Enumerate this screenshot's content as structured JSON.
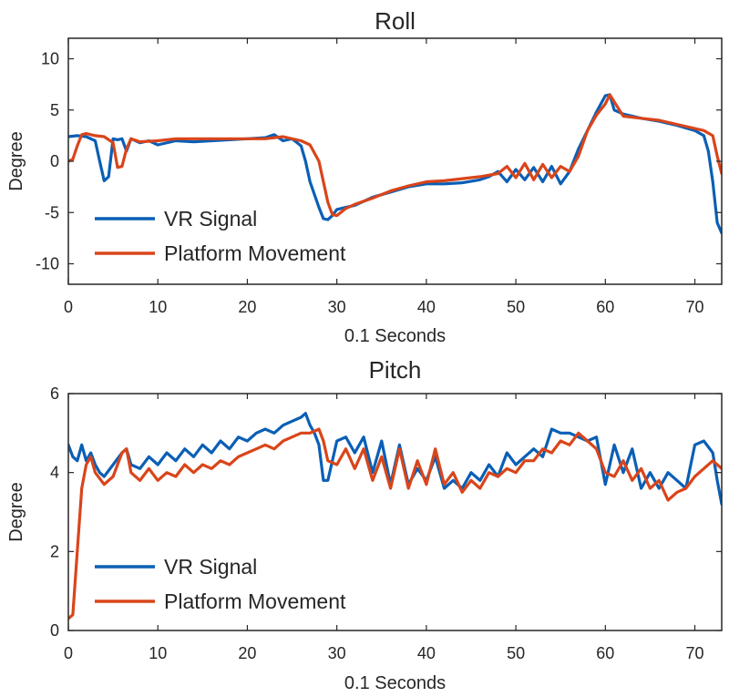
{
  "colors": {
    "vr": "#0a5fb5",
    "platform": "#d9451a",
    "axis": "#262626",
    "background": "#ffffff"
  },
  "chart_data": [
    {
      "type": "line",
      "title": "Roll",
      "xlabel": "0.1 Seconds",
      "ylabel": "Degree",
      "xlim": [
        0,
        73
      ],
      "ylim": [
        -12,
        12
      ],
      "xticks": [
        0,
        10,
        20,
        30,
        40,
        50,
        60,
        70
      ],
      "yticks": [
        10,
        5,
        0,
        -5,
        -10
      ],
      "legend": {
        "location": "lower-left",
        "entries": [
          "VR Signal",
          "Platform Movement"
        ]
      },
      "series": [
        {
          "name": "VR Signal",
          "x": [
            0,
            1,
            2,
            3,
            3.5,
            4,
            4.5,
            5,
            5.5,
            6,
            6.5,
            7,
            8,
            9,
            10,
            12,
            14,
            16,
            18,
            20,
            22,
            23,
            24,
            25,
            26,
            26.5,
            27,
            28,
            28.5,
            29,
            29.5,
            30,
            31,
            32,
            34,
            36,
            38,
            40,
            42,
            44,
            46,
            47,
            48,
            49,
            50,
            51,
            52,
            53,
            54,
            55,
            56,
            57,
            58,
            59,
            60,
            60.5,
            61,
            62,
            64,
            66,
            68,
            70,
            71,
            71.5,
            72,
            72.5,
            73
          ],
          "y": [
            2.4,
            2.5,
            2.4,
            2,
            0,
            -1.9,
            -1.5,
            2.2,
            2.1,
            2.2,
            1,
            2.2,
            1.8,
            2,
            1.6,
            2,
            1.9,
            2,
            2.1,
            2.2,
            2.3,
            2.6,
            2,
            2.2,
            1.5,
            0,
            -2,
            -4.5,
            -5.6,
            -5.7,
            -5.3,
            -4.7,
            -4.5,
            -4.3,
            -3.5,
            -3,
            -2.5,
            -2.2,
            -2.2,
            -2.1,
            -1.8,
            -1.5,
            -1,
            -2,
            -0.8,
            -1.8,
            -0.6,
            -2,
            -0.5,
            -2.2,
            -1,
            1.2,
            3,
            4.8,
            6.4,
            6.5,
            5,
            4.6,
            4.2,
            3.9,
            3.5,
            3,
            2.5,
            1,
            -2,
            -6,
            -7
          ]
        },
        {
          "name": "Platform Movement",
          "x": [
            0,
            0.5,
            1,
            1.5,
            2,
            3,
            4,
            5,
            5.5,
            6,
            6.5,
            7,
            8,
            10,
            12,
            14,
            16,
            18,
            20,
            22,
            24,
            26,
            27,
            28,
            28.5,
            29,
            29.5,
            30,
            31,
            32,
            34,
            36,
            38,
            40,
            42,
            44,
            46,
            48,
            49,
            50,
            51,
            52,
            53,
            54,
            55,
            56,
            57,
            58,
            59,
            60,
            60.5,
            61,
            62,
            64,
            66,
            68,
            70,
            71,
            72,
            72.5,
            73
          ],
          "y": [
            0,
            0.2,
            1.5,
            2.6,
            2.7,
            2.5,
            2.4,
            1.8,
            -0.6,
            -0.5,
            1.2,
            2.2,
            1.9,
            2,
            2.2,
            2.2,
            2.2,
            2.2,
            2.2,
            2.2,
            2.4,
            2,
            1.6,
            0,
            -2,
            -4,
            -5.2,
            -5.3,
            -4.6,
            -4.2,
            -3.6,
            -2.9,
            -2.4,
            -2,
            -1.9,
            -1.7,
            -1.5,
            -1.2,
            -0.5,
            -1.6,
            -0.2,
            -1.8,
            -0.3,
            -1.6,
            -0.5,
            -1,
            0.5,
            3,
            4.5,
            5.6,
            6.5,
            5.8,
            4.4,
            4.2,
            4,
            3.6,
            3.2,
            3,
            2.5,
            0.5,
            -1.2
          ]
        }
      ]
    },
    {
      "type": "line",
      "title": "Pitch",
      "xlabel": "0.1 Seconds",
      "ylabel": "Degree",
      "xlim": [
        0,
        73
      ],
      "ylim": [
        0,
        6
      ],
      "xticks": [
        0,
        10,
        20,
        30,
        40,
        50,
        60,
        70
      ],
      "yticks": [
        6,
        4,
        2,
        0
      ],
      "legend": {
        "location": "lower-left",
        "entries": [
          "VR Signal",
          "Platform Movement"
        ]
      },
      "series": [
        {
          "name": "VR Signal",
          "x": [
            0,
            0.5,
            1,
            1.5,
            2,
            2.5,
            3,
            3.5,
            4,
            5,
            6,
            6.5,
            7,
            8,
            9,
            10,
            11,
            12,
            13,
            14,
            15,
            16,
            17,
            18,
            19,
            20,
            21,
            22,
            23,
            24,
            25,
            26,
            26.5,
            27,
            27.5,
            28,
            28.5,
            29,
            30,
            31,
            32,
            33,
            34,
            35,
            36,
            37,
            38,
            39,
            40,
            41,
            42,
            43,
            44,
            45,
            46,
            47,
            48,
            49,
            50,
            51,
            52,
            53,
            54,
            55,
            56,
            57,
            58,
            59,
            60,
            61,
            62,
            63,
            64,
            65,
            66,
            67,
            68,
            69,
            70,
            71,
            72,
            72.5,
            73
          ],
          "y": [
            4.7,
            4.4,
            4.3,
            4.7,
            4.3,
            4.5,
            4.2,
            4.0,
            3.9,
            4.2,
            4.5,
            4.6,
            4.2,
            4.1,
            4.4,
            4.2,
            4.5,
            4.3,
            4.6,
            4.4,
            4.7,
            4.5,
            4.8,
            4.6,
            4.9,
            4.8,
            5.0,
            5.1,
            5.0,
            5.2,
            5.3,
            5.4,
            5.5,
            5.2,
            5.0,
            4.7,
            3.8,
            3.8,
            4.8,
            4.9,
            4.5,
            4.9,
            4.0,
            4.8,
            3.7,
            4.7,
            3.7,
            4.1,
            3.8,
            4.4,
            3.6,
            3.8,
            3.6,
            4.0,
            3.8,
            4.2,
            3.9,
            4.5,
            4.2,
            4.4,
            4.6,
            4.4,
            5.1,
            5.0,
            5.0,
            4.9,
            4.8,
            4.9,
            3.7,
            4.7,
            4.0,
            4.6,
            3.6,
            4.0,
            3.6,
            4.0,
            3.8,
            3.6,
            4.7,
            4.8,
            4.5,
            3.8,
            3.2
          ]
        },
        {
          "name": "Platform Movement",
          "x": [
            0,
            0.5,
            1,
            1.5,
            2,
            2.5,
            3,
            4,
            5,
            6,
            6.5,
            7,
            8,
            9,
            10,
            11,
            12,
            13,
            14,
            15,
            16,
            17,
            18,
            19,
            20,
            21,
            22,
            23,
            24,
            25,
            26,
            27,
            28,
            28.5,
            29,
            30,
            31,
            32,
            33,
            34,
            35,
            36,
            37,
            38,
            39,
            40,
            41,
            42,
            43,
            44,
            45,
            46,
            47,
            48,
            49,
            50,
            51,
            52,
            53,
            54,
            55,
            56,
            57,
            58,
            59,
            60,
            61,
            62,
            63,
            64,
            65,
            66,
            67,
            68,
            69,
            70,
            71,
            72,
            72.5,
            73
          ],
          "y": [
            0.3,
            0.4,
            2.0,
            3.6,
            4.2,
            4.4,
            4.0,
            3.7,
            3.9,
            4.5,
            4.6,
            4.0,
            3.8,
            4.1,
            3.8,
            4.0,
            3.9,
            4.2,
            4.0,
            4.2,
            4.1,
            4.3,
            4.2,
            4.4,
            4.5,
            4.6,
            4.7,
            4.6,
            4.8,
            4.9,
            5.0,
            5.0,
            5.1,
            4.8,
            4.3,
            4.2,
            4.6,
            4.1,
            4.6,
            3.8,
            4.4,
            3.6,
            4.6,
            3.6,
            4.3,
            3.7,
            4.6,
            3.7,
            4.0,
            3.5,
            3.8,
            3.6,
            4.0,
            3.9,
            4.1,
            4.0,
            4.3,
            4.3,
            4.6,
            4.5,
            4.8,
            4.7,
            5.0,
            4.8,
            4.6,
            4.0,
            3.9,
            4.3,
            3.8,
            4.1,
            3.6,
            3.8,
            3.3,
            3.5,
            3.6,
            3.9,
            4.1,
            4.3,
            4.2,
            4.1
          ]
        }
      ]
    }
  ]
}
